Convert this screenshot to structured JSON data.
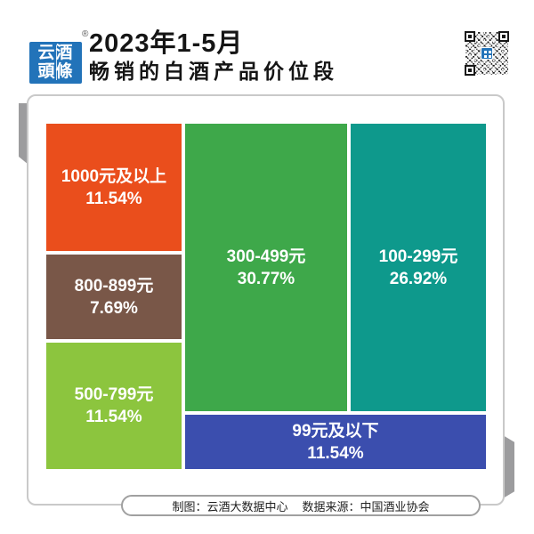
{
  "header": {
    "logo_line1": "云酒",
    "logo_line2": "頭條",
    "registered_mark": "®",
    "title_line1": "2023年1-5月",
    "title_line2": "畅销的白酒产品价位段"
  },
  "footer": {
    "credit": "制图：云酒大数据中心",
    "source": "数据来源：中国酒业协会"
  },
  "colors": {
    "logo_blue": "#2273B9",
    "card_border": "#C9C9C9",
    "tab_gray": "#9C9C9E",
    "qr_center_blue": "#2273B9"
  },
  "chart_data": {
    "type": "treemap",
    "title": "2023年1-5月畅销的白酒产品价位段",
    "unit": "%",
    "legend_position": "none",
    "segments": [
      {
        "label": "1000元及以上",
        "value": 11.54,
        "display": "11.54%",
        "color": "#EA4E1C"
      },
      {
        "label": "800-899元",
        "value": 7.69,
        "display": "7.69%",
        "color": "#795748"
      },
      {
        "label": "500-799元",
        "value": 11.54,
        "display": "11.54%",
        "color": "#8CC53E"
      },
      {
        "label": "300-499元",
        "value": 30.77,
        "display": "30.77%",
        "color": "#3EA84A"
      },
      {
        "label": "100-299元",
        "value": 26.92,
        "display": "26.92%",
        "color": "#0E998C"
      },
      {
        "label": "99元及以下",
        "value": 11.54,
        "display": "11.54%",
        "color": "#3B4EAE"
      }
    ]
  }
}
